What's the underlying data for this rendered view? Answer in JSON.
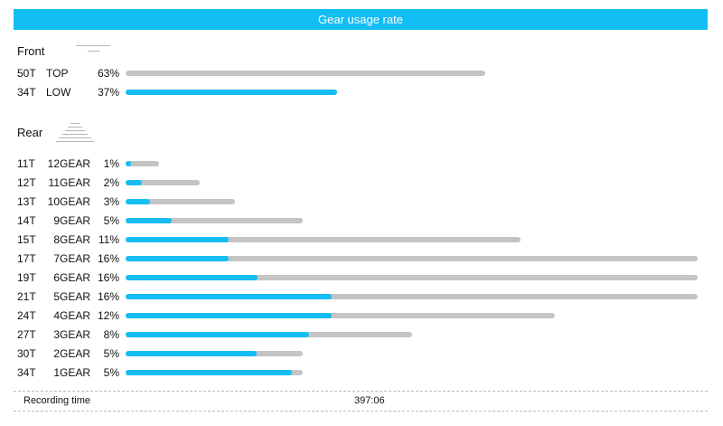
{
  "title": "Gear usage rate",
  "front": {
    "label": "Front",
    "gears": [
      {
        "teeth": "50T",
        "name": "TOP",
        "percent": "63%",
        "fill": 0
      },
      {
        "teeth": "34T",
        "name": "LOW",
        "percent": "37%",
        "fill": 1
      }
    ]
  },
  "rear": {
    "label": "Rear",
    "gears": [
      {
        "teeth": "11T",
        "name": "12GEAR",
        "percent": "1%",
        "fill": 0.15
      },
      {
        "teeth": "12T",
        "name": "11GEAR",
        "percent": "2%",
        "fill": 0.22
      },
      {
        "teeth": "13T",
        "name": "10GEAR",
        "percent": "3%",
        "fill": 0.22
      },
      {
        "teeth": "14T",
        "name": "9GEAR",
        "percent": "5%",
        "fill": 0.26
      },
      {
        "teeth": "15T",
        "name": "8GEAR",
        "percent": "11%",
        "fill": 0.26
      },
      {
        "teeth": "17T",
        "name": "7GEAR",
        "percent": "16%",
        "fill": 0.18
      },
      {
        "teeth": "19T",
        "name": "6GEAR",
        "percent": "16%",
        "fill": 0.23
      },
      {
        "teeth": "21T",
        "name": "5GEAR",
        "percent": "16%",
        "fill": 0.36
      },
      {
        "teeth": "24T",
        "name": "4GEAR",
        "percent": "12%",
        "fill": 0.48
      },
      {
        "teeth": "27T",
        "name": "3GEAR",
        "percent": "8%",
        "fill": 0.64
      },
      {
        "teeth": "30T",
        "name": "2GEAR",
        "percent": "5%",
        "fill": 0.74
      },
      {
        "teeth": "34T",
        "name": "1GEAR",
        "percent": "5%",
        "fill": 0.94
      }
    ]
  },
  "footer": {
    "label": "Recording time",
    "value": "397:06"
  },
  "colors": {
    "header": "#12bdf2",
    "fill": "#15bdf5",
    "track": "#c4c4c4"
  }
}
